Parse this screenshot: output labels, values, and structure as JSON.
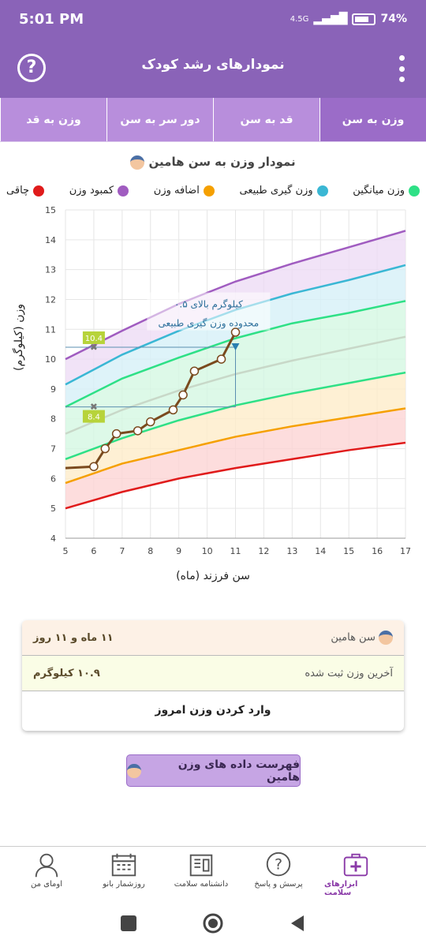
{
  "status_bar": {
    "time": "5:01 PM",
    "network": "4.5G",
    "battery": "74%"
  },
  "app_bar": {
    "title": "نمودارهای رشد کودک",
    "help_icon": "question-circle-icon",
    "menu_icon": "more-vert-icon"
  },
  "tabs": [
    {
      "label": "وزن به سن",
      "active": true
    },
    {
      "label": "قد به سن",
      "active": false
    },
    {
      "label": "دور سر به سن",
      "active": false
    },
    {
      "label": "وزن به قد",
      "active": false
    }
  ],
  "chart_title": "نمودار وزن به سن هامین",
  "legend": [
    {
      "label": "چاقی",
      "color": "#e01b1b"
    },
    {
      "label": "کمبود وزن",
      "color": "#f5a000"
    },
    {
      "label": "اضافه وزن",
      "color": "#3ab7d4"
    },
    {
      "label": "وزن گیری طبیعی",
      "color": "#2ee086"
    },
    {
      "label": "وزن میانگین",
      "color": "#cccccc"
    }
  ],
  "chart_data": {
    "type": "line",
    "xlabel": "سن فرزند (ماه)",
    "ylabel": "وزن (کیلوگرم)",
    "xlim": [
      5,
      17
    ],
    "ylim": [
      4,
      15
    ],
    "xticks": [
      "5",
      "6",
      "7",
      "8",
      "9",
      "10",
      "11",
      "12",
      "13",
      "14",
      "15",
      "16",
      "17"
    ],
    "yticks": [
      "4",
      "5",
      "6",
      "7",
      "8",
      "9",
      "10",
      "11",
      "12",
      "13",
      "14",
      "15"
    ],
    "curves": [
      {
        "color": "#e01b1b",
        "x": [
          5,
          7,
          9,
          11,
          13,
          15,
          17
        ],
        "y": [
          5.0,
          5.55,
          6.0,
          6.35,
          6.65,
          6.95,
          7.2
        ]
      },
      {
        "color": "#f5a000",
        "x": [
          5,
          7,
          9,
          11,
          13,
          15,
          17
        ],
        "y": [
          5.85,
          6.5,
          6.95,
          7.4,
          7.75,
          8.05,
          8.35
        ]
      },
      {
        "color": "#2ee086",
        "x": [
          5,
          7,
          9,
          11,
          13,
          15,
          17
        ],
        "y": [
          6.65,
          7.35,
          7.95,
          8.45,
          8.85,
          9.2,
          9.55
        ]
      },
      {
        "color": "#c8d8c8",
        "x": [
          5,
          7,
          9,
          11,
          13,
          15,
          17
        ],
        "y": [
          7.5,
          8.3,
          8.95,
          9.5,
          9.95,
          10.35,
          10.75
        ]
      },
      {
        "color": "#2ee086",
        "x": [
          5,
          7,
          9,
          11,
          13,
          15,
          17
        ],
        "y": [
          8.4,
          9.35,
          10.05,
          10.7,
          11.2,
          11.55,
          11.95
        ]
      },
      {
        "color": "#3ab7d4",
        "x": [
          5,
          7,
          9,
          11,
          13,
          15,
          17
        ],
        "y": [
          9.15,
          10.15,
          10.95,
          11.65,
          12.2,
          12.65,
          13.15
        ]
      },
      {
        "color": "#a05cc0",
        "x": [
          5,
          7,
          9,
          11,
          13,
          15,
          17
        ],
        "y": [
          10.0,
          10.95,
          11.85,
          12.6,
          13.2,
          13.75,
          14.3
        ]
      }
    ],
    "bands": [
      {
        "color": "#fdd5d5",
        "from": 0,
        "to": 1
      },
      {
        "color": "#feecc9",
        "from": 1,
        "to": 2
      },
      {
        "color": "#d5f8e2",
        "from": 2,
        "to": 4
      },
      {
        "color": "#d6f0f8",
        "from": 4,
        "to": 5
      },
      {
        "color": "#eedcf5",
        "from": 5,
        "to": 6
      }
    ],
    "series": [
      {
        "color": "#7a4a1e",
        "x": [
          5,
          6,
          6.4,
          6.8,
          7.55,
          8.0,
          8.8,
          9.15,
          9.55,
          10.5,
          11.0
        ],
        "y": [
          6.35,
          6.4,
          7.0,
          7.5,
          7.6,
          7.9,
          8.3,
          8.8,
          9.6,
          10.0,
          10.9
        ]
      }
    ],
    "markers": [
      {
        "x": 6,
        "y": 10.4,
        "label": "10.4"
      },
      {
        "x": 6,
        "y": 8.4,
        "label": "8.4"
      }
    ],
    "guides": {
      "x": 11,
      "y_upper": 10.4,
      "y_lower": 8.4
    },
    "annotation": [
      "۰.۵ کیلوگرم بالای",
      "محدوده وزن گیری طبیعی"
    ]
  },
  "info": {
    "age_label": "سن هامین",
    "age_value": "۱۱ ماه و ۱۱ روز",
    "weight_label": "آخرین وزن ثبت شده",
    "weight_value": "۱۰.۹ کیلوگرم",
    "enter_button": "وارد کردن وزن امروز"
  },
  "list_button": "فهرست داده های وزن هامین",
  "bottom_nav": [
    {
      "label": "ابزارهای سلامت",
      "icon": "medical-kit-icon",
      "active": true
    },
    {
      "label": "پرسش و پاسخ",
      "icon": "question-bubble-icon",
      "active": false
    },
    {
      "label": "دانشنامه سلامت",
      "icon": "book-icon",
      "active": false
    },
    {
      "label": "روزشمار بانو",
      "icon": "calendar-icon",
      "active": false
    },
    {
      "label": "اومای من",
      "icon": "profile-icon",
      "active": false
    }
  ]
}
